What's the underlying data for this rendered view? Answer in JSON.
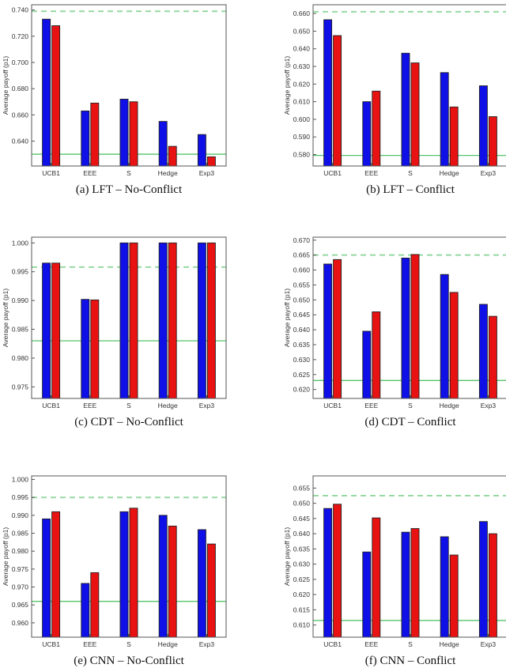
{
  "figure": {
    "ylabel": "Average payoff (p1)",
    "categories": [
      "UCB1",
      "EEE",
      "S",
      "Hedge",
      "Exp3"
    ],
    "colors": {
      "blue_bar": "#0f0fe8",
      "red_bar": "#e81212",
      "bar_edge": "#222222",
      "dashed_line_green": "#97d9a3",
      "solid_line_green": "#55c46a",
      "axis": "#555555",
      "tick_text": "#333333"
    }
  },
  "chart_data": [
    {
      "id": "a",
      "type": "bar",
      "caption": "(a) LFT – No-Conflict",
      "ylabel": "Average payoff (p1)",
      "categories": [
        "UCB1",
        "EEE",
        "S",
        "Hedge",
        "Exp3"
      ],
      "series": [
        {
          "name": "blue-bars",
          "color": "#0f0fe8",
          "values": [
            0.733,
            0.663,
            0.672,
            0.655,
            0.645
          ]
        },
        {
          "name": "red-bars",
          "color": "#e81212",
          "values": [
            0.728,
            0.669,
            0.67,
            0.636,
            0.628
          ]
        }
      ],
      "hlines": {
        "dashed": 0.739,
        "solid": 0.63
      },
      "ylim": [
        0.621,
        0.744
      ],
      "yticks": [
        0.64,
        0.66,
        0.68,
        0.7,
        0.72,
        0.74
      ],
      "grid": false,
      "legend": "none"
    },
    {
      "id": "b",
      "type": "bar",
      "caption": "(b) LFT – Conflict",
      "ylabel": "Average payoff (p1)",
      "categories": [
        "UCB1",
        "EEE",
        "S",
        "Hedge",
        "Exp3"
      ],
      "series": [
        {
          "name": "blue-bars",
          "color": "#0f0fe8",
          "values": [
            0.6565,
            0.61,
            0.6375,
            0.6265,
            0.619
          ]
        },
        {
          "name": "red-bars",
          "color": "#e81212",
          "values": [
            0.6475,
            0.616,
            0.632,
            0.607,
            0.6015
          ]
        }
      ],
      "hlines": {
        "dashed": 0.661,
        "solid": 0.5795
      },
      "ylim": [
        0.5735,
        0.665
      ],
      "yticks": [
        0.58,
        0.59,
        0.6,
        0.61,
        0.62,
        0.63,
        0.64,
        0.65,
        0.66
      ],
      "grid": false,
      "legend": "none"
    },
    {
      "id": "c",
      "type": "bar",
      "caption": "(c) CDT – No-Conflict",
      "ylabel": "Average payoff (p1)",
      "categories": [
        "UCB1",
        "EEE",
        "S",
        "Hedge",
        "Exp3"
      ],
      "series": [
        {
          "name": "blue-bars",
          "color": "#0f0fe8",
          "values": [
            0.9965,
            0.9902,
            1.0,
            1.0,
            1.0
          ]
        },
        {
          "name": "red-bars",
          "color": "#e81212",
          "values": [
            0.9965,
            0.9901,
            1.0,
            1.0,
            1.0
          ]
        }
      ],
      "hlines": {
        "dashed": 0.9958,
        "solid": 0.983
      },
      "ylim": [
        0.973,
        1.001
      ],
      "yticks": [
        0.975,
        0.98,
        0.985,
        0.99,
        0.995,
        1.0
      ],
      "grid": false,
      "legend": "none"
    },
    {
      "id": "d",
      "type": "bar",
      "caption": "(d) CDT – Conflict",
      "ylabel": "Average payoff (p1)",
      "categories": [
        "UCB1",
        "EEE",
        "S",
        "Hedge",
        "Exp3"
      ],
      "series": [
        {
          "name": "blue-bars",
          "color": "#0f0fe8",
          "values": [
            0.662,
            0.6395,
            0.664,
            0.6585,
            0.6485
          ]
        },
        {
          "name": "red-bars",
          "color": "#e81212",
          "values": [
            0.6635,
            0.646,
            0.6652,
            0.6525,
            0.6445
          ]
        }
      ],
      "hlines": {
        "dashed": 0.665,
        "solid": 0.623
      },
      "ylim": [
        0.617,
        0.671
      ],
      "yticks": [
        0.62,
        0.625,
        0.63,
        0.635,
        0.64,
        0.645,
        0.65,
        0.655,
        0.66,
        0.665,
        0.67
      ],
      "grid": false,
      "legend": "none"
    },
    {
      "id": "e",
      "type": "bar",
      "caption": "(e) CNN – No-Conflict",
      "ylabel": "Average payoff (p1)",
      "categories": [
        "UCB1",
        "EEE",
        "S",
        "Hedge",
        "Exp3"
      ],
      "series": [
        {
          "name": "blue-bars",
          "color": "#0f0fe8",
          "values": [
            0.989,
            0.971,
            0.991,
            0.99,
            0.986
          ]
        },
        {
          "name": "red-bars",
          "color": "#e81212",
          "values": [
            0.991,
            0.974,
            0.992,
            0.987,
            0.982
          ]
        }
      ],
      "hlines": {
        "dashed": 0.995,
        "solid": 0.966
      },
      "ylim": [
        0.956,
        1.001
      ],
      "yticks": [
        0.96,
        0.965,
        0.97,
        0.975,
        0.98,
        0.985,
        0.99,
        0.995,
        1.0
      ],
      "grid": false,
      "legend": "none"
    },
    {
      "id": "f",
      "type": "bar",
      "caption": "(f) CNN – Conflict",
      "ylabel": "Average payoff (p1)",
      "categories": [
        "UCB1",
        "EEE",
        "S",
        "Hedge",
        "Exp3"
      ],
      "series": [
        {
          "name": "blue-bars",
          "color": "#0f0fe8",
          "values": [
            0.6483,
            0.634,
            0.6405,
            0.639,
            0.644
          ]
        },
        {
          "name": "red-bars",
          "color": "#e81212",
          "values": [
            0.6497,
            0.6452,
            0.6417,
            0.633,
            0.64
          ]
        }
      ],
      "hlines": {
        "dashed": 0.6525,
        "solid": 0.6115
      },
      "ylim": [
        0.606,
        0.659
      ],
      "yticks": [
        0.61,
        0.615,
        0.62,
        0.625,
        0.63,
        0.635,
        0.64,
        0.645,
        0.65,
        0.655
      ],
      "grid": false,
      "legend": "none"
    }
  ]
}
